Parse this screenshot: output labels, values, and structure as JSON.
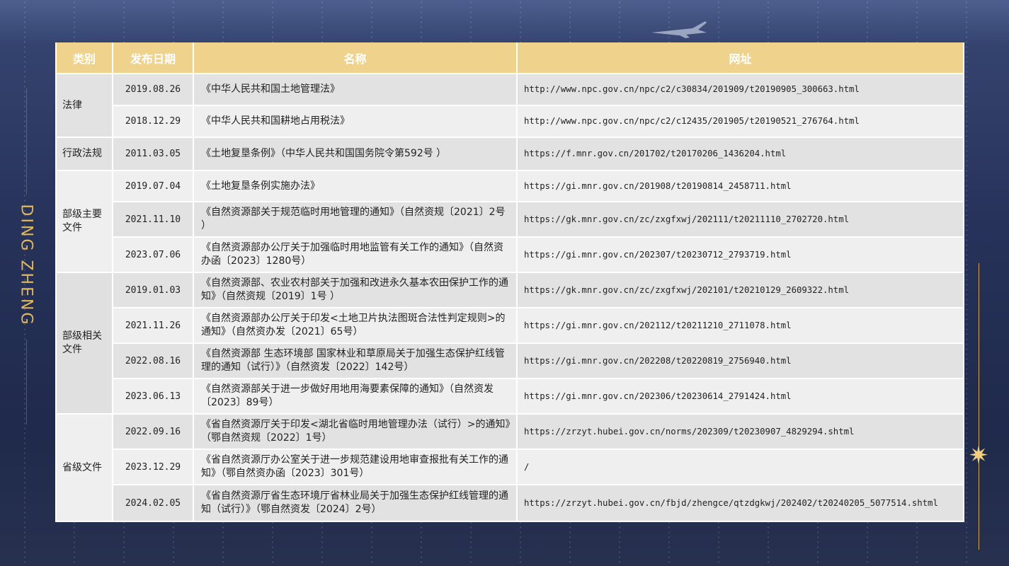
{
  "side_title": "DING ZHENG",
  "colors": {
    "header_bg": "#efd28c",
    "accent_gold": "#e2b85a",
    "background": "#27325a"
  },
  "icons": {
    "decoration": "star-icon",
    "background_image": "airplane-icon"
  },
  "table": {
    "headers": [
      "类别",
      "发布日期",
      "名称",
      "网址"
    ],
    "categories": [
      "法律",
      "行政法规",
      "部级主要文件",
      "部级相关文件",
      "省级文件"
    ],
    "rows": [
      {
        "date": "2019.08.26",
        "name": "《中华人民共和国土地管理法》",
        "url": "http://www.npc.gov.cn/npc/c2/c30834/201909/t20190905_300663.html"
      },
      {
        "date": "2018.12.29",
        "name": "《中华人民共和国耕地占用税法》",
        "url": "http://www.npc.gov.cn/npc/c2/c12435/201905/t20190521_276764.html"
      },
      {
        "date": "2011.03.05",
        "name": "《土地复垦条例》（中华人民共和国国务院令第592号 ）",
        "url": "https://f.mnr.gov.cn/201702/t20170206_1436204.html"
      },
      {
        "date": "2019.07.04",
        "name": "《土地复垦条例实施办法》",
        "url": "https://gi.mnr.gov.cn/201908/t20190814_2458711.html"
      },
      {
        "date": "2021.11.10",
        "name": "《自然资源部关于规范临时用地管理的通知》（自然资规〔2021〕2号 ）",
        "url": "https://gk.mnr.gov.cn/zc/zxgfxwj/202111/t20211110_2702720.html"
      },
      {
        "date": "2023.07.06",
        "name": "《自然资源部办公厅关于加强临时用地监管有关工作的通知》（自然资办函〔2023〕1280号）",
        "url": "https://gi.mnr.gov.cn/202307/t20230712_2793719.html"
      },
      {
        "date": "2019.01.03",
        "name": "《自然资源部、农业农村部关于加强和改进永久基本农田保护工作的通知》（自然资规〔2019〕1号 ）",
        "url": "https://gk.mnr.gov.cn/zc/zxgfxwj/202101/t20210129_2609322.html"
      },
      {
        "date": "2021.11.26",
        "name": "《自然资源部办公厅关于印发<土地卫片执法图斑合法性判定规则>的通知》（自然资办发〔2021〕65号）",
        "url": "https://gi.mnr.gov.cn/202112/t20211210_2711078.html"
      },
      {
        "date": "2022.08.16",
        "name": "《自然资源部 生态环境部 国家林业和草原局关于加强生态保护红线管理的通知（试行）》（自然资发〔2022〕142号）",
        "url": "https://gi.mnr.gov.cn/202208/t20220819_2756940.html"
      },
      {
        "date": "2023.06.13",
        "name": "《自然资源部关于进一步做好用地用海要素保障的通知》（自然资发〔2023〕89号）",
        "url": "https://gi.mnr.gov.cn/202306/t20230614_2791424.html"
      },
      {
        "date": "2022.09.16",
        "name": "《省自然资源厅关于印发<湖北省临时用地管理办法（试行）>的通知》（鄂自然资规〔2022〕1号）",
        "url": "https://zrzyt.hubei.gov.cn/norms/202309/t20230907_4829294.shtml"
      },
      {
        "date": "2023.12.29",
        "name": "《省自然资源厅办公室关于进一步规范建设用地审查报批有关工作的通知》（鄂自然资办函〔2023〕301号）",
        "url": "/"
      },
      {
        "date": "2024.02.05",
        "name": "《省自然资源厅省生态环境厅省林业局关于加强生态保护红线管理的通知（试行）》（鄂自然资发〔2024〕2号）",
        "url": "https://zrzyt.hubei.gov.cn/fbjd/zhengce/qtzdgkwj/202402/t20240205_5077514.shtml"
      }
    ]
  }
}
